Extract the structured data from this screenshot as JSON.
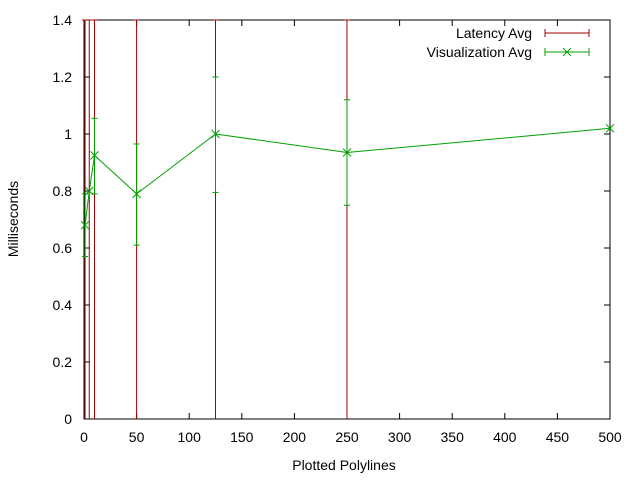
{
  "chart_data": {
    "type": "line",
    "xlabel": "Plotted Polylines",
    "ylabel": "Milliseconds",
    "xlim": [
      0,
      500
    ],
    "ylim": [
      0,
      1.4
    ],
    "x_ticks": [
      "0",
      "50",
      "100",
      "150",
      "200",
      "250",
      "300",
      "350",
      "400",
      "450",
      "500"
    ],
    "y_ticks": [
      "0",
      "0.2",
      "0.4",
      "0.6",
      "0.8",
      "1",
      "1.2",
      "1.4"
    ],
    "legend_position": "top-right",
    "grid": false,
    "series": [
      {
        "name": "Latency Avg",
        "color": "#a00000",
        "style": "errorbars",
        "x": [
          1,
          5,
          10,
          50,
          125,
          250
        ],
        "y_low": [
          0,
          0,
          0,
          0,
          0,
          0
        ],
        "y_high": [
          1.4,
          1.4,
          1.4,
          1.4,
          1.4,
          1.4
        ]
      },
      {
        "name": "Visualization Avg",
        "color": "#00a000",
        "style": "linespoints-errorbars",
        "x": [
          1,
          5,
          10,
          50,
          125,
          250,
          500
        ],
        "y": [
          0.68,
          0.8,
          0.925,
          0.79,
          1.0,
          0.935,
          1.02
        ],
        "y_low": [
          0.57,
          0.8,
          0.79,
          0.61,
          0.795,
          0.75,
          1.02
        ],
        "y_high": [
          0.79,
          0.8,
          1.055,
          0.965,
          1.2,
          1.12,
          1.02
        ]
      }
    ]
  }
}
